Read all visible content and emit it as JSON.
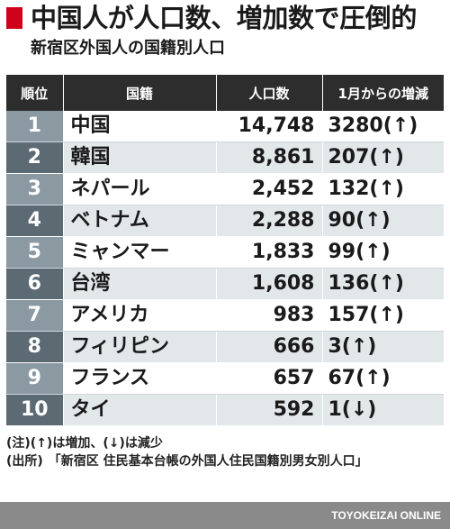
{
  "title": "中国人が人口数、増加数で圧倒的",
  "subtitle": "新宿区外国人の国籍別人口",
  "accent_color": "#d0021b",
  "chart_data": {
    "type": "table",
    "title": "中国人が人口数、増加数で圧倒的",
    "subtitle": "新宿区外国人の国籍別人口",
    "columns": [
      "順位",
      "国籍",
      "人口数",
      "1月からの増減"
    ],
    "rows": [
      {
        "rank": "1",
        "country": "中国",
        "population": "14,748",
        "change": "3280(↑)"
      },
      {
        "rank": "2",
        "country": "韓国",
        "population": "8,861",
        "change": "207(↑)"
      },
      {
        "rank": "3",
        "country": "ネパール",
        "population": "2,452",
        "change": "132(↑)"
      },
      {
        "rank": "4",
        "country": "ベトナム",
        "population": "2,288",
        "change": "90(↑)"
      },
      {
        "rank": "5",
        "country": "ミャンマー",
        "population": "1,833",
        "change": "99(↑)"
      },
      {
        "rank": "6",
        "country": "台湾",
        "population": "1,608",
        "change": "136(↑)"
      },
      {
        "rank": "7",
        "country": "アメリカ",
        "population": "983",
        "change": "157(↑)"
      },
      {
        "rank": "8",
        "country": "フィリピン",
        "population": "666",
        "change": "3(↑)"
      },
      {
        "rank": "9",
        "country": "フランス",
        "population": "657",
        "change": "67(↑)"
      },
      {
        "rank": "10",
        "country": "タイ",
        "population": "592",
        "change": "1(↓)"
      }
    ]
  },
  "notes": {
    "note_label": "(注)",
    "note_text": "(↑)は増加、(↓)は減少",
    "source_label": "(出所)",
    "source_text": "「新宿区 住民基本台帳の外国人住民国籍別男女別人口」"
  },
  "footer": {
    "credit": "TOYOKEIZAI ONLINE"
  }
}
